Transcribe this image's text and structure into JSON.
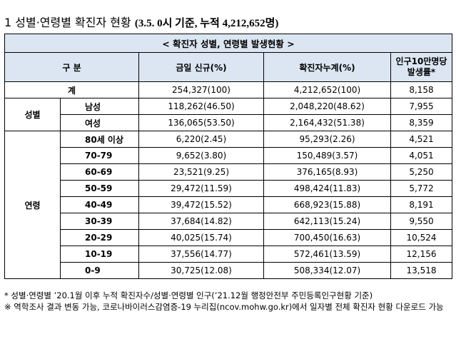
{
  "heading": {
    "number": "1",
    "title": "성별·연령별 확진자 현황",
    "subtitle": "(3.5. 0시 기준, 누적 4,212,652명)"
  },
  "table": {
    "banner": "< 확진자 성별, 연령별 발생현황 >",
    "headers": {
      "category": "구 분",
      "new_cases": "금일 신규(%)",
      "cumulative": "확진자누계(%)",
      "rate_line1": "인구10만명당",
      "rate_line2": "발생률*"
    },
    "total": {
      "label": "계",
      "new": "254,327(100)",
      "cum": "4,212,652(100)",
      "rate": "8,158"
    },
    "sex": {
      "label": "성별",
      "rows": [
        {
          "label": "남성",
          "new": "118,262(46.50)",
          "cum": "2,048,220(48.62)",
          "rate": "7,955"
        },
        {
          "label": "여성",
          "new": "136,065(53.50)",
          "cum": "2,164,432(51.38)",
          "rate": "8,359"
        }
      ]
    },
    "age": {
      "label": "연령",
      "rows": [
        {
          "label": "80세 이상",
          "new": "6,220(2.45)",
          "cum": "95,293(2.26)",
          "rate": "4,521"
        },
        {
          "label": "70-79",
          "new": "9,652(3.80)",
          "cum": "150,489(3.57)",
          "rate": "4,051"
        },
        {
          "label": "60-69",
          "new": "23,521(9.25)",
          "cum": "376,165(8.93)",
          "rate": "5,250"
        },
        {
          "label": "50-59",
          "new": "29,472(11.59)",
          "cum": "498,424(11.83)",
          "rate": "5,772"
        },
        {
          "label": "40-49",
          "new": "39,472(15.52)",
          "cum": "668,923(15.88)",
          "rate": "8,191"
        },
        {
          "label": "30-39",
          "new": "37,684(14.82)",
          "cum": "642,113(15.24)",
          "rate": "9,550"
        },
        {
          "label": "20-29",
          "new": "40,025(15.74)",
          "cum": "700,450(16.63)",
          "rate": "10,524"
        },
        {
          "label": "10-19",
          "new": "37,556(14.77)",
          "cum": "572,461(13.59)",
          "rate": "12,156"
        },
        {
          "label": "0-9",
          "new": "30,725(12.08)",
          "cum": "508,334(12.07)",
          "rate": "13,518"
        }
      ]
    }
  },
  "notes": {
    "note1": "* 성별·연령별 ’20.1월 이후 누적 확진자수/성별·연령별 인구(’21.12월 행정안전부 주민등록인구현황 기준)",
    "note2": "※ 역학조사 결과 변동 가능, 코로나바이러스감염증-19 누리집(ncov.mohw.go.kr)에서 일자별 전체 확진자 현황 다운로드 가능"
  }
}
